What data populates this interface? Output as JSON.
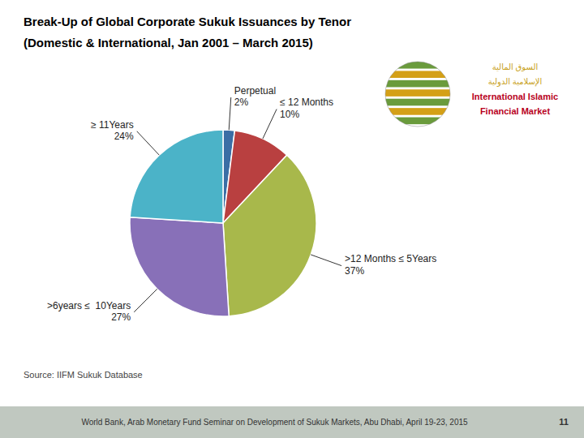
{
  "chart_data": {
    "type": "pie",
    "title": "Break-Up of Global Corporate Sukuk Issuances by Tenor",
    "subtitle": "(Domestic & International, Jan 2001 – March 2015)",
    "categories": [
      "Perpetual",
      "≤ 12 Months",
      ">12 Months ≤ 5Years",
      ">6years ≤  10Years",
      "≥ 11Years"
    ],
    "values": [
      2,
      10,
      37,
      27,
      24
    ],
    "value_labels": [
      "2%",
      "10%",
      "37%",
      "27%",
      "24%"
    ],
    "colors": [
      "#3B6EA5",
      "#B94040",
      "#A8B84B",
      "#8870B8",
      "#4BB3C8"
    ],
    "annotations": [
      "السوق المالية",
      "الإسلامية الدولية",
      "International Islamic",
      "Financial Market",
      "Source: IIFM Sukuk Database",
      "World Bank, Arab Monetary Fund Seminar on Development of Sukuk Markets, Abu Dhabi, April 19-23, 2015",
      "11"
    ]
  }
}
